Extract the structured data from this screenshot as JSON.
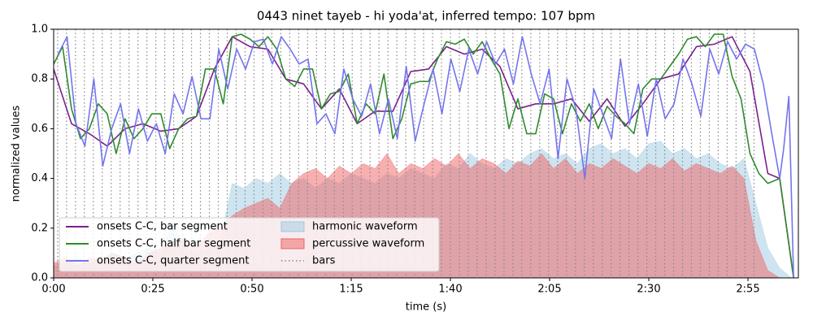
{
  "chart_data": {
    "type": "line",
    "title": "0443 ninet tayeb - hi yoda'at, inferred tempo: 107 bpm",
    "xlabel": "time (s)",
    "ylabel": "normalized values",
    "xlim": [
      0,
      187.7
    ],
    "ylim": [
      0,
      1
    ],
    "xticks": [
      {
        "value": 0,
        "label": "0:00"
      },
      {
        "value": 25,
        "label": "0:25"
      },
      {
        "value": 50,
        "label": "0:50"
      },
      {
        "value": 75,
        "label": "1:15"
      },
      {
        "value": 100,
        "label": "1:40"
      },
      {
        "value": 125,
        "label": "2:05"
      },
      {
        "value": 150,
        "label": "2:30"
      },
      {
        "value": 175,
        "label": "2:55"
      }
    ],
    "yticks": [
      {
        "value": 0,
        "label": "0.0"
      },
      0.2,
      0.4,
      0.6,
      0.8,
      {
        "value": 1,
        "label": "1.0"
      }
    ],
    "legend": "lower left",
    "legend_columns": 2,
    "series": [
      {
        "name": "onsets C-C, bar segment",
        "kind": "line",
        "color": "#7b1f8f",
        "x": [
          0,
          4.5,
          9,
          13.5,
          18,
          22.5,
          27,
          31.5,
          36,
          40.5,
          45,
          49.5,
          54,
          58.5,
          63,
          67.5,
          72,
          76.5,
          81,
          85.5,
          90,
          94.5,
          99,
          103.5,
          108,
          112.5,
          117,
          121.5,
          126,
          130.5,
          135,
          139.5,
          144,
          148.5,
          153,
          157.5,
          162,
          166.5,
          171,
          175.5,
          180,
          183,
          186.5
        ],
        "values": [
          0.84,
          0.62,
          0.58,
          0.53,
          0.6,
          0.62,
          0.59,
          0.6,
          0.65,
          0.84,
          0.97,
          0.93,
          0.92,
          0.8,
          0.78,
          0.68,
          0.76,
          0.62,
          0.67,
          0.67,
          0.83,
          0.84,
          0.93,
          0.9,
          0.92,
          0.85,
          0.68,
          0.7,
          0.7,
          0.72,
          0.63,
          0.72,
          0.61,
          0.7,
          0.8,
          0.82,
          0.93,
          0.94,
          0.97,
          0.83,
          0.42,
          0.4,
          0.0
        ]
      },
      {
        "name": "onsets C-C, half bar segment",
        "kind": "line",
        "color": "#2e8b2e",
        "x": [
          0,
          2.25,
          4.5,
          6.75,
          9,
          11.25,
          13.5,
          15.75,
          18,
          20.25,
          22.5,
          24.75,
          27,
          29.25,
          31.5,
          33.75,
          36,
          38.25,
          40.5,
          42.75,
          45,
          47.25,
          49.5,
          51.75,
          54,
          56.25,
          58.5,
          60.75,
          63,
          65.25,
          67.5,
          69.75,
          72,
          74.25,
          76.5,
          78.75,
          81,
          83.25,
          85.5,
          87.75,
          90,
          92.25,
          94.5,
          96.75,
          99,
          101.25,
          103.5,
          105.75,
          108,
          110.25,
          112.5,
          114.75,
          117,
          119.25,
          121.5,
          123.75,
          126,
          128.25,
          130.5,
          132.75,
          135,
          137.25,
          139.5,
          141.75,
          144,
          146.25,
          148.5,
          150.75,
          153,
          155.25,
          157.5,
          159.75,
          162,
          164.25,
          166.5,
          168.75,
          171,
          173.25,
          175.5,
          177.75,
          180,
          183,
          186.5
        ],
        "values": [
          0.86,
          0.93,
          0.68,
          0.56,
          0.6,
          0.7,
          0.66,
          0.5,
          0.64,
          0.56,
          0.6,
          0.66,
          0.66,
          0.52,
          0.6,
          0.64,
          0.65,
          0.84,
          0.84,
          0.7,
          0.97,
          0.98,
          0.96,
          0.93,
          0.97,
          0.92,
          0.8,
          0.77,
          0.84,
          0.84,
          0.68,
          0.74,
          0.75,
          0.82,
          0.62,
          0.7,
          0.66,
          0.82,
          0.56,
          0.64,
          0.78,
          0.79,
          0.79,
          0.88,
          0.95,
          0.94,
          0.96,
          0.9,
          0.95,
          0.88,
          0.82,
          0.6,
          0.72,
          0.58,
          0.58,
          0.74,
          0.72,
          0.58,
          0.7,
          0.63,
          0.7,
          0.6,
          0.69,
          0.65,
          0.62,
          0.58,
          0.76,
          0.8,
          0.8,
          0.85,
          0.9,
          0.96,
          0.97,
          0.93,
          0.98,
          0.98,
          0.81,
          0.72,
          0.5,
          0.42,
          0.38,
          0.4,
          0.0
        ]
      },
      {
        "name": "onsets C-C, quarter segment",
        "kind": "line",
        "color": "#7474ee",
        "x": [
          1.125,
          3.375,
          5.625,
          7.875,
          10.125,
          12.375,
          14.625,
          16.875,
          19.125,
          21.375,
          23.625,
          25.875,
          28.125,
          30.375,
          32.625,
          34.875,
          37.125,
          39.375,
          41.625,
          43.875,
          46.125,
          48.375,
          50.625,
          52.875,
          55.125,
          57.375,
          59.625,
          61.875,
          64.125,
          66.375,
          68.625,
          70.875,
          73.125,
          75.375,
          77.625,
          79.875,
          82.125,
          84.375,
          86.625,
          88.875,
          91.125,
          93.375,
          95.625,
          97.875,
          100.125,
          102.375,
          104.625,
          106.875,
          109.125,
          111.375,
          113.625,
          115.875,
          118.125,
          120.375,
          122.625,
          124.875,
          127.125,
          129.375,
          131.625,
          133.875,
          136.125,
          138.375,
          140.625,
          142.875,
          145.125,
          147.375,
          149.625,
          151.875,
          154.125,
          156.375,
          158.625,
          160.875,
          163.125,
          165.375,
          167.625,
          169.875,
          172.125,
          174.375,
          176.625,
          178.875,
          181,
          183,
          184,
          185.3,
          186.5
        ],
        "values": [
          0.9,
          0.97,
          0.62,
          0.53,
          0.8,
          0.45,
          0.6,
          0.7,
          0.5,
          0.68,
          0.55,
          0.62,
          0.5,
          0.74,
          0.66,
          0.81,
          0.64,
          0.64,
          0.92,
          0.76,
          0.92,
          0.84,
          0.95,
          0.96,
          0.86,
          0.97,
          0.92,
          0.86,
          0.88,
          0.62,
          0.66,
          0.58,
          0.84,
          0.72,
          0.65,
          0.78,
          0.58,
          0.72,
          0.56,
          0.85,
          0.55,
          0.7,
          0.84,
          0.66,
          0.88,
          0.75,
          0.92,
          0.82,
          0.95,
          0.86,
          0.92,
          0.78,
          0.97,
          0.82,
          0.7,
          0.84,
          0.48,
          0.8,
          0.68,
          0.4,
          0.76,
          0.66,
          0.56,
          0.88,
          0.62,
          0.78,
          0.57,
          0.8,
          0.64,
          0.7,
          0.88,
          0.78,
          0.65,
          0.92,
          0.82,
          0.95,
          0.88,
          0.94,
          0.92,
          0.78,
          0.58,
          0.4,
          0.52,
          0.73,
          0.0
        ]
      },
      {
        "name": "harmonic waveform",
        "kind": "area",
        "color": "#9ecae1",
        "x": [
          0,
          3,
          6,
          9,
          12,
          15,
          18,
          21,
          24,
          27,
          30,
          33,
          36,
          39,
          42,
          45,
          48,
          51,
          54,
          57,
          60,
          63,
          66,
          69,
          72,
          75,
          78,
          81,
          84,
          87,
          90,
          93,
          96,
          99,
          102,
          105,
          108,
          111,
          114,
          117,
          120,
          123,
          126,
          129,
          132,
          135,
          138,
          141,
          144,
          147,
          150,
          153,
          156,
          159,
          162,
          165,
          168,
          171,
          174,
          177,
          180,
          183,
          186
        ],
        "values": [
          0.05,
          0.06,
          0.08,
          0.06,
          0.08,
          0.1,
          0.08,
          0.1,
          0.12,
          0.1,
          0.22,
          0.12,
          0.1,
          0.12,
          0.15,
          0.38,
          0.36,
          0.4,
          0.38,
          0.42,
          0.38,
          0.4,
          0.36,
          0.4,
          0.38,
          0.42,
          0.4,
          0.38,
          0.42,
          0.4,
          0.44,
          0.42,
          0.4,
          0.46,
          0.44,
          0.5,
          0.46,
          0.44,
          0.48,
          0.46,
          0.5,
          0.52,
          0.48,
          0.5,
          0.46,
          0.52,
          0.54,
          0.5,
          0.52,
          0.48,
          0.54,
          0.55,
          0.5,
          0.52,
          0.48,
          0.5,
          0.46,
          0.44,
          0.48,
          0.3,
          0.12,
          0.04,
          0.0
        ]
      },
      {
        "name": "percussive waveform",
        "kind": "area",
        "color": "#f06060",
        "x": [
          0,
          3,
          6,
          9,
          12,
          15,
          18,
          21,
          24,
          27,
          30,
          33,
          36,
          39,
          42,
          45,
          48,
          51,
          54,
          57,
          60,
          63,
          66,
          69,
          72,
          75,
          78,
          81,
          84,
          87,
          90,
          93,
          96,
          99,
          102,
          105,
          108,
          111,
          114,
          117,
          120,
          123,
          126,
          129,
          132,
          135,
          138,
          141,
          144,
          147,
          150,
          153,
          156,
          159,
          162,
          165,
          168,
          171,
          174,
          177,
          180,
          183,
          186
        ],
        "values": [
          0.06,
          0.08,
          0.05,
          0.08,
          0.07,
          0.1,
          0.08,
          0.06,
          0.1,
          0.12,
          0.14,
          0.16,
          0.12,
          0.18,
          0.2,
          0.25,
          0.28,
          0.3,
          0.32,
          0.28,
          0.38,
          0.42,
          0.44,
          0.4,
          0.45,
          0.42,
          0.46,
          0.44,
          0.5,
          0.42,
          0.46,
          0.44,
          0.48,
          0.45,
          0.5,
          0.44,
          0.48,
          0.46,
          0.42,
          0.47,
          0.45,
          0.5,
          0.44,
          0.48,
          0.42,
          0.46,
          0.44,
          0.48,
          0.45,
          0.42,
          0.46,
          0.44,
          0.48,
          0.43,
          0.46,
          0.44,
          0.42,
          0.45,
          0.4,
          0.15,
          0.03,
          0.0,
          0.0
        ]
      },
      {
        "name": "bars",
        "kind": "vlines",
        "color": "#888888",
        "x": [
          1,
          3.25,
          5.5,
          7.75,
          10,
          12.25,
          14.5,
          16.75,
          19,
          21.25,
          23.5,
          25.75,
          28,
          30.25,
          32.5,
          34.75,
          37,
          39.25,
          41.5,
          43.75,
          46,
          48.25,
          50.5,
          52.75,
          55,
          57.25,
          59.5,
          61.75,
          64,
          66.25,
          68.5,
          70.75,
          73,
          75.25,
          77.5,
          79.75,
          82,
          84.25,
          86.5,
          88.75,
          91,
          93.25,
          95.5,
          97.75,
          100,
          102.25,
          104.5,
          106.75,
          109,
          111.25,
          113.5,
          115.75,
          118,
          120.25,
          122.5,
          124.75,
          127,
          129.25,
          131.5,
          133.75,
          136,
          138.25,
          140.5,
          142.75,
          145,
          147.25,
          149.5,
          151.75,
          154,
          156.25,
          158.5,
          160.75,
          163,
          165.25,
          167.5,
          169.75,
          172,
          174.25,
          176.5
        ]
      }
    ]
  }
}
